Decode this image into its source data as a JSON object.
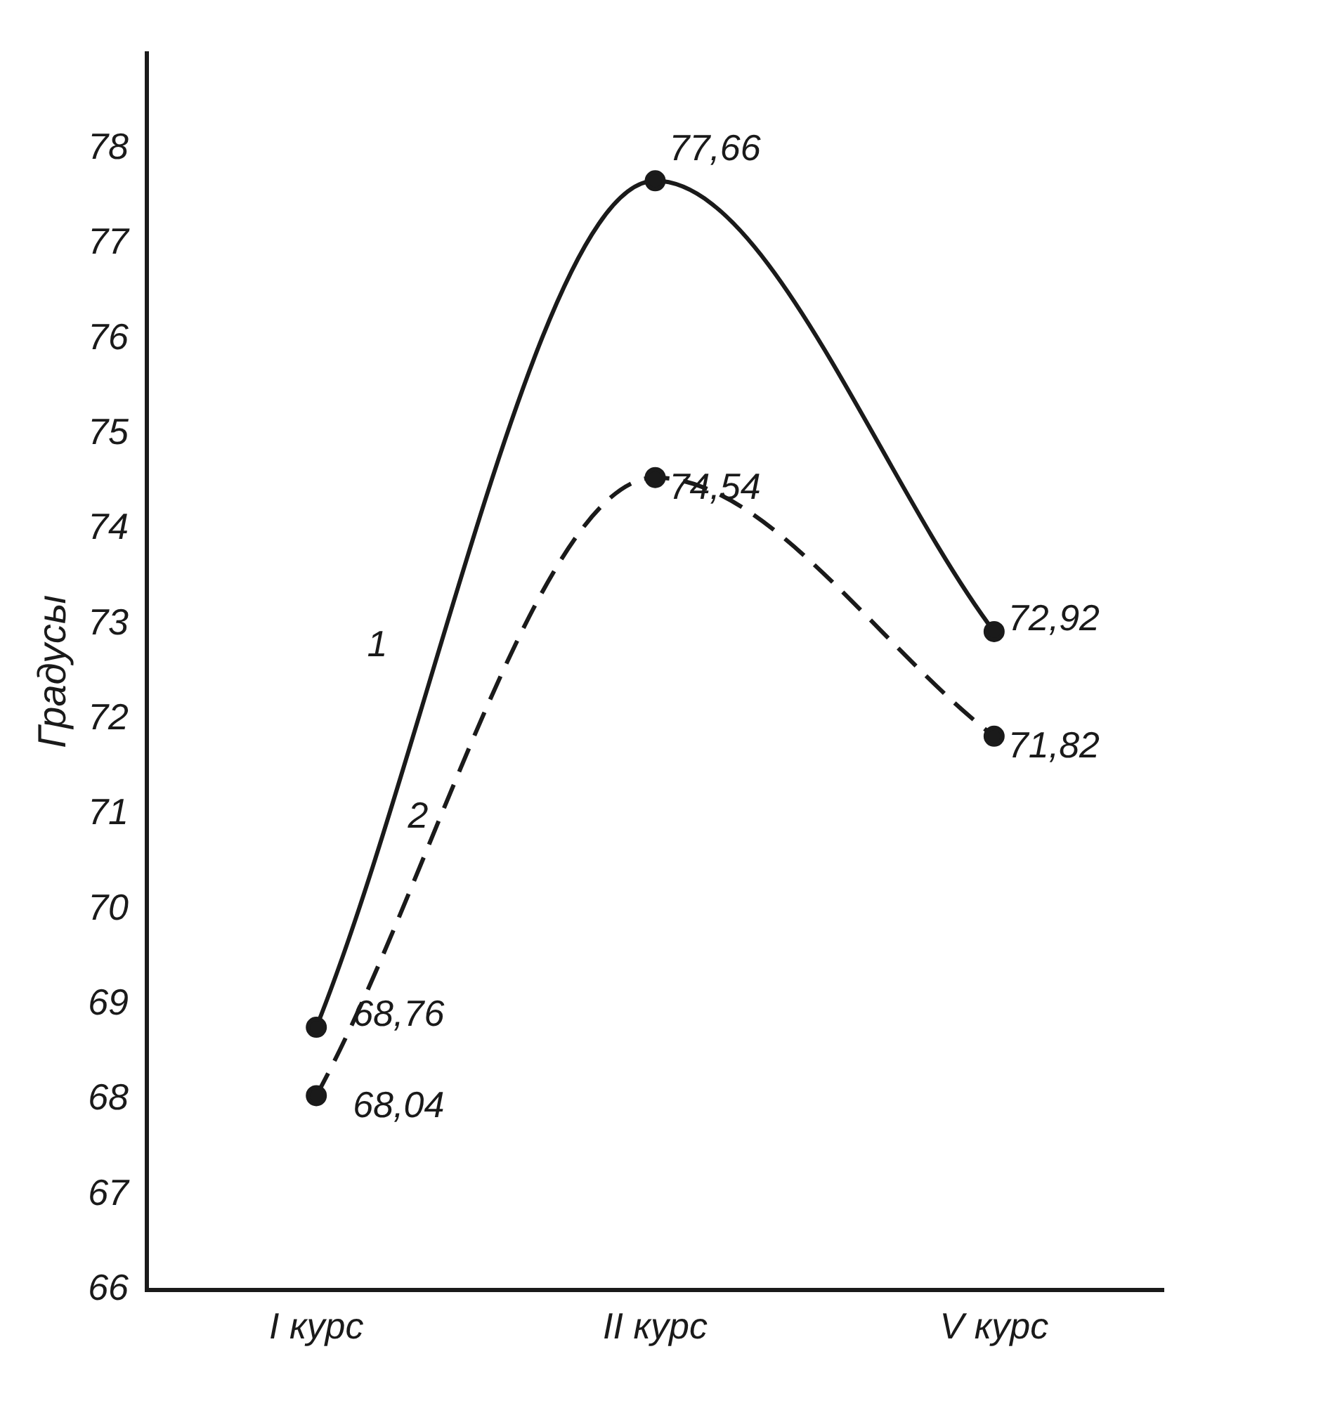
{
  "chart_data": {
    "type": "line",
    "ylabel": "Градусы",
    "categories": [
      "I курс",
      "II курс",
      "V курс"
    ],
    "series": [
      {
        "name": "1",
        "color": "#1a1a1a",
        "line_style": "solid",
        "values": [
          68.76,
          77.66,
          72.92
        ],
        "value_labels": [
          "68,76",
          "77,66",
          "72,92"
        ]
      },
      {
        "name": "2",
        "color": "#1a1a1a",
        "line_style": "dashed",
        "values": [
          68.04,
          74.54,
          71.82
        ],
        "value_labels": [
          "68,04",
          "74,54",
          "71,82"
        ]
      }
    ],
    "ylim": [
      66,
      79
    ],
    "yticks": [
      66,
      67,
      68,
      69,
      70,
      71,
      72,
      73,
      74,
      75,
      76,
      77,
      78
    ],
    "grid": false,
    "legend": false,
    "marker": "circle"
  }
}
